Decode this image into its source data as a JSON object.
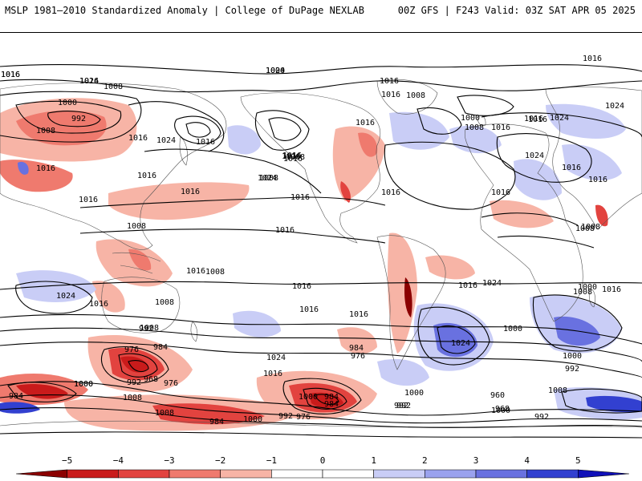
{
  "header": {
    "left": "MSLP 1981–2010 Standardized Anomaly | College of DuPage NEXLAB",
    "right": "00Z GFS | F243 Valid: 03Z SAT APR 05 2025"
  },
  "colorbar": {
    "ticks": [
      "−5",
      "−4",
      "−3",
      "−2",
      "−1",
      "0",
      "1",
      "2",
      "3",
      "4",
      "5"
    ],
    "bins": [
      "#8b0000",
      "#c91b1b",
      "#e2433f",
      "#ef7a6e",
      "#f7b4a6",
      "#ffffff",
      "#ffffff",
      "#c9cdf6",
      "#9aa2ee",
      "#6971e0",
      "#3240d0",
      "#1010b8"
    ]
  },
  "colors": {
    "pos_light": "#c9cdf6",
    "pos_mid": "#9aa2ee",
    "pos_strong": "#6971e0",
    "pos_deep": "#3240d0",
    "neg_light": "#f7b4a6",
    "neg_mid": "#ef7a6e",
    "neg_strong": "#e2433f",
    "neg_deep": "#c91b1b",
    "neg_max": "#8b0000"
  },
  "isobar_labels": [
    "1016",
    "1024",
    "1016",
    "1008",
    "1000",
    "992",
    "1008",
    "1016",
    "1024",
    "1016",
    "1016",
    "1016",
    "1016",
    "1008",
    "1016",
    "1016",
    "1024",
    "1016",
    "1024",
    "1016",
    "1016",
    "1016",
    "1008",
    "1016",
    "1016",
    "1008",
    "1016",
    "1000",
    "1024",
    "1008",
    "1016",
    "1016",
    "1016",
    "1016",
    "1016",
    "1024",
    "1016",
    "1008",
    "1016",
    "1008",
    "1016",
    "1008",
    "1008",
    "1016",
    "1016",
    "1016",
    "1024",
    "1016",
    "1024",
    "1008",
    "1024",
    "1016",
    "1016",
    "1024",
    "1016",
    "1008",
    "1016",
    "1000",
    "1008",
    "1000",
    "992",
    "1000",
    "992",
    "984",
    "976",
    "984",
    "968",
    "992",
    "976",
    "1000",
    "1008",
    "1008",
    "984",
    "1000",
    "992",
    "976",
    "984",
    "976",
    "984",
    "1000",
    "992",
    "1000",
    "984",
    "992",
    "968",
    "960",
    "1000",
    "1008",
    "1000",
    "992",
    "1016",
    "1000",
    "1024"
  ]
}
